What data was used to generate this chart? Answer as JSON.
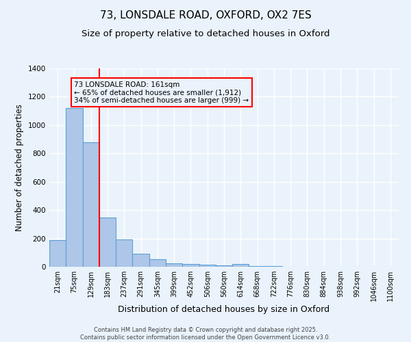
{
  "title_line1": "73, LONSDALE ROAD, OXFORD, OX2 7ES",
  "title_line2": "Size of property relative to detached houses in Oxford",
  "xlabel": "Distribution of detached houses by size in Oxford",
  "ylabel": "Number of detached properties",
  "categories": [
    "21sqm",
    "75sqm",
    "129sqm",
    "183sqm",
    "237sqm",
    "291sqm",
    "345sqm",
    "399sqm",
    "452sqm",
    "506sqm",
    "560sqm",
    "614sqm",
    "668sqm",
    "722sqm",
    "776sqm",
    "830sqm",
    "884sqm",
    "938sqm",
    "992sqm",
    "1046sqm",
    "1100sqm"
  ],
  "values": [
    190,
    1120,
    880,
    350,
    195,
    90,
    55,
    25,
    20,
    15,
    10,
    20,
    5,
    5,
    0,
    0,
    0,
    0,
    0,
    0,
    0
  ],
  "bar_color": "#aec6e8",
  "bar_edge_color": "#5a9fd4",
  "vline_color": "red",
  "annotation_text": "73 LONSDALE ROAD: 161sqm\n← 65% of detached houses are smaller (1,912)\n34% of semi-detached houses are larger (999) →",
  "annotation_box_color": "red",
  "ylim": [
    0,
    1400
  ],
  "yticks": [
    0,
    200,
    400,
    600,
    800,
    1000,
    1200,
    1400
  ],
  "background_color": "#eaf3fb",
  "grid_color": "white",
  "footer_line1": "Contains HM Land Registry data © Crown copyright and database right 2025.",
  "footer_line2": "Contains public sector information licensed under the Open Government Licence v3.0.",
  "title_fontsize": 11,
  "subtitle_fontsize": 9.5,
  "tick_fontsize": 7,
  "ylabel_fontsize": 8.5,
  "xlabel_fontsize": 9
}
